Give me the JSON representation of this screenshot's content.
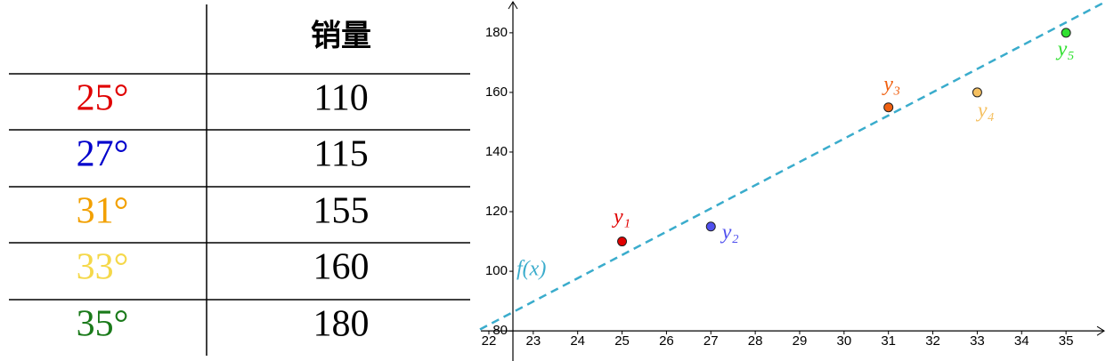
{
  "table": {
    "header": "销量",
    "rows": [
      {
        "label": "25°",
        "color": "#e00000",
        "value": 110
      },
      {
        "label": "27°",
        "color": "#0000cc",
        "value": 115
      },
      {
        "label": "31°",
        "color": "#f2a000",
        "value": 155
      },
      {
        "label": "33°",
        "color": "#f5d84a",
        "value": 160
      },
      {
        "label": "35°",
        "color": "#1a7a1a",
        "value": 180
      }
    ]
  },
  "chart_data": {
    "type": "scatter",
    "xlim": [
      21.82,
      35.9
    ],
    "ylim": [
      69.9,
      191
    ],
    "xticks": [
      22,
      23,
      24,
      25,
      26,
      27,
      28,
      29,
      30,
      31,
      32,
      33,
      34,
      35
    ],
    "yticks": [
      80,
      100,
      120,
      140,
      160,
      180
    ],
    "series": [
      {
        "type": "scatter",
        "x": [
          25,
          27,
          31,
          33,
          35
        ],
        "values": [
          110,
          115,
          155,
          160,
          180
        ],
        "labels": [
          "y₁",
          "y₂",
          "y₃",
          "y₄",
          "y₅"
        ],
        "colors": [
          "#e00000",
          "#5050ee",
          "#f06010",
          "#f5c060",
          "#30e030"
        ]
      },
      {
        "type": "line",
        "name": "f(x)",
        "x": [
          21.8,
          35.9
        ],
        "values": [
          80.5,
          190.5
        ],
        "color": "#3aaccc",
        "dashed": true
      }
    ]
  }
}
